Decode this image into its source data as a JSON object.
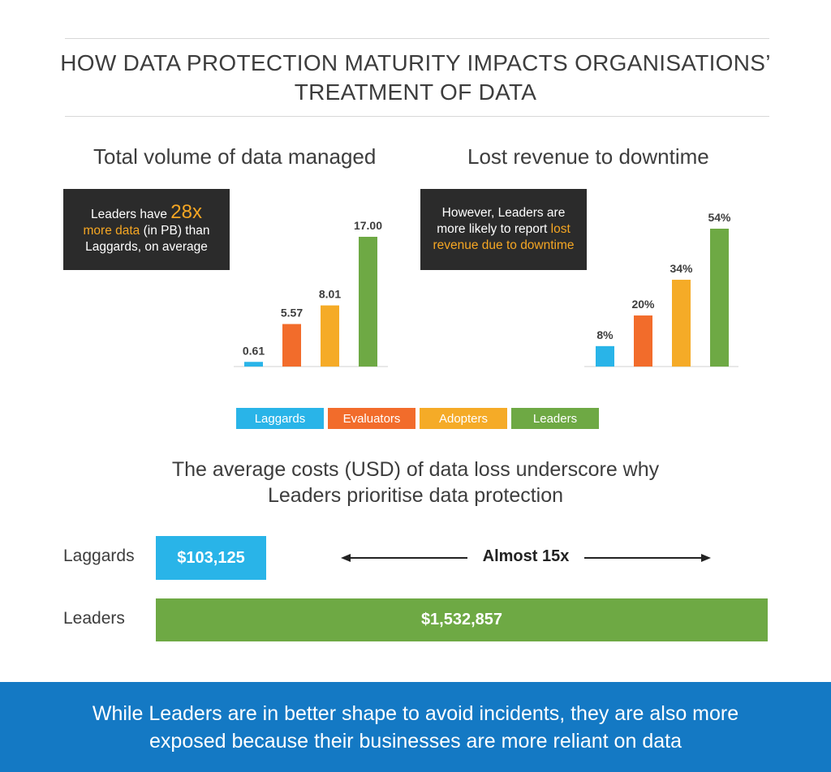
{
  "header": {
    "title_line1": "HOW DATA PROTECTION MATURITY IMPACTS ORGANISATIONS’",
    "title_line2": "TREATMENT OF DATA"
  },
  "colors": {
    "laggards": "#29b4e8",
    "evaluators": "#f26c2b",
    "adopters": "#f5ab27",
    "leaders": "#6ea944",
    "callout_bg": "#2b2b2b",
    "highlight": "#f5a623",
    "footer_bg": "#1479c4"
  },
  "callouts": {
    "volume": {
      "pre": "Leaders have ",
      "big": "28x",
      "hl": "more data",
      "post": " (in PB) than",
      "line3": "Laggards, on average"
    },
    "revenue": {
      "line1": "However, Leaders are",
      "line2_pre": "more likely to report ",
      "line2_hl": "lost",
      "line3_hl": "revenue due to downtime"
    }
  },
  "chart_data": [
    {
      "type": "bar",
      "title": "Total volume of data managed",
      "categories": [
        "Laggards",
        "Evaluators",
        "Adopters",
        "Leaders"
      ],
      "values": [
        0.61,
        5.57,
        8.01,
        17.0
      ],
      "value_labels": [
        "0.61",
        "5.57",
        "8.01",
        "17.00"
      ],
      "ylim": [
        0,
        17.0
      ]
    },
    {
      "type": "bar",
      "title": "Lost revenue to downtime",
      "categories": [
        "Laggards",
        "Evaluators",
        "Adopters",
        "Leaders"
      ],
      "values": [
        8,
        20,
        34,
        54
      ],
      "value_labels": [
        "8%",
        "20%",
        "34%",
        "54%"
      ],
      "ylim": [
        0,
        54
      ]
    },
    {
      "type": "bar",
      "orientation": "horizontal",
      "title": "The average costs (USD) of data loss underscore why Leaders prioritise data protection",
      "categories": [
        "Laggards",
        "Leaders"
      ],
      "values": [
        103125,
        1532857
      ],
      "value_labels": [
        "$103,125",
        "$1,532,857"
      ]
    }
  ],
  "legend": [
    "Laggards",
    "Evaluators",
    "Adopters",
    "Leaders"
  ],
  "costs": {
    "subtitle_line1": "The average costs (USD) of data loss underscore why",
    "subtitle_line2": "Leaders prioritise data protection",
    "comparison_label": "Almost 15x"
  },
  "footer": {
    "line1": "While Leaders are in better shape to avoid incidents, they are also more",
    "line2": "exposed because their businesses are more reliant on data"
  }
}
